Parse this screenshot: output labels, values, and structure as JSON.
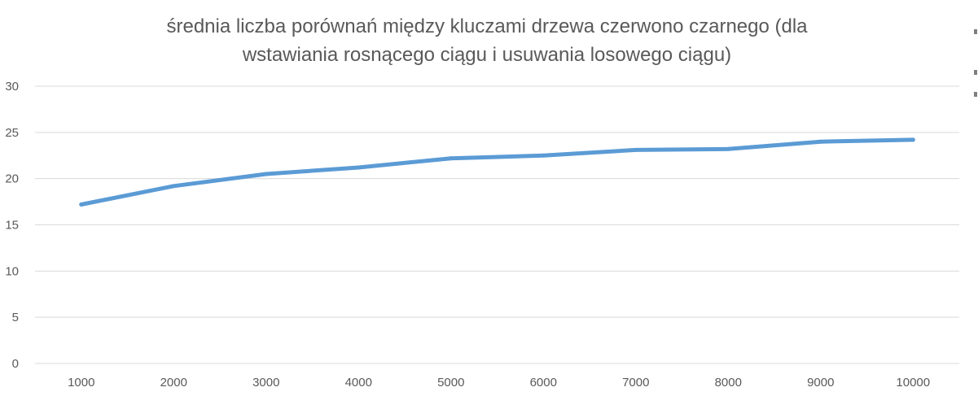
{
  "chart_data": {
    "type": "line",
    "title_lines": [
      "średnia liczba porównań między kluczami drzewa czerwono czarnego (dla",
      "wstawiania rosnącego ciągu i usuwania losowego ciągu)"
    ],
    "categories": [
      "1000",
      "2000",
      "3000",
      "4000",
      "5000",
      "6000",
      "7000",
      "8000",
      "9000",
      "10000"
    ],
    "series": [
      {
        "values": [
          17.2,
          19.2,
          20.5,
          21.2,
          22.2,
          22.5,
          23.1,
          23.2,
          24.0,
          24.2
        ],
        "color": "#5b9bd5"
      }
    ],
    "xlabel": "",
    "ylabel": "",
    "ylim": [
      0,
      30
    ],
    "yticks": [
      "0",
      "5",
      "10",
      "15",
      "20",
      "25",
      "30"
    ],
    "grid": true,
    "legend": "none"
  }
}
